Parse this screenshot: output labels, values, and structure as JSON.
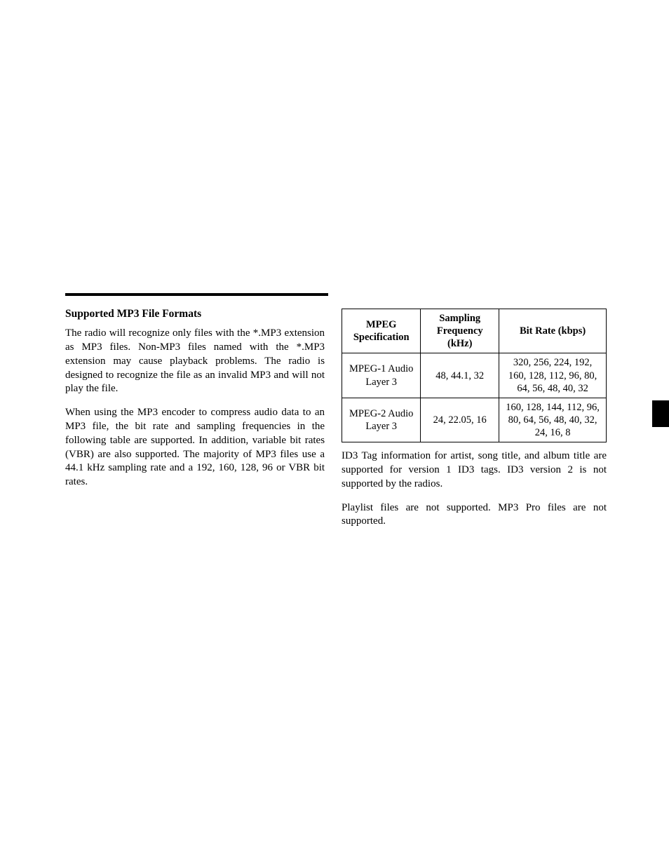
{
  "left": {
    "heading": "Supported MP3 File Formats",
    "para1": "The radio will recognize only files with the *.MP3 extension as MP3 files. Non-MP3 files named with the *.MP3 extension may cause playback problems. The radio is designed to recognize the file as an invalid MP3 and will not play the file.",
    "para2": "When using the MP3 encoder to compress audio data to an MP3 file, the bit rate and sampling frequencies in the following table are supported. In addition, variable bit rates (VBR) are also supported. The majority of MP3 files use a 44.1 kHz sampling rate and a 192, 160, 128, 96 or VBR bit rates."
  },
  "table": {
    "headers": {
      "c1": "MPEG Specification",
      "c2": "Sampling Frequency (kHz)",
      "c3": "Bit Rate (kbps)"
    },
    "row1": {
      "c1": "MPEG-1 Audio Layer 3",
      "c2": "48, 44.1, 32",
      "c3": "320, 256, 224, 192, 160, 128, 112, 96, 80, 64, 56, 48, 40, 32"
    },
    "row2": {
      "c1": "MPEG-2 Audio Layer 3",
      "c2": "24, 22.05, 16",
      "c3": "160, 128, 144, 112, 96, 80, 64, 56, 48, 40, 32, 24, 16, 8"
    }
  },
  "right": {
    "para1": "ID3 Tag information for artist, song title, and album title are supported for version 1 ID3 tags. ID3 version 2 is not supported by the radios.",
    "para2": "Playlist files are not supported. MP3 Pro files are not supported."
  }
}
